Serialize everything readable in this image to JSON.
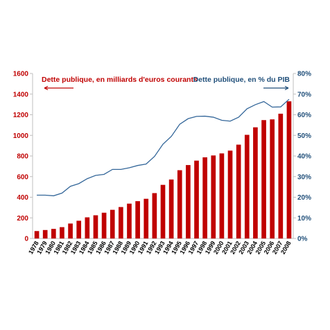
{
  "chart_data": {
    "type": "bar+line",
    "x": [
      "1978",
      "1979",
      "1980",
      "1981",
      "1982",
      "1983",
      "1984",
      "1985",
      "1986",
      "1987",
      "1988",
      "1989",
      "1990",
      "1991",
      "1992",
      "1993",
      "1994",
      "1995",
      "1996",
      "1997",
      "1998",
      "1999",
      "2000",
      "2001",
      "2002",
      "2003",
      "2004",
      "2005",
      "2006",
      "2007",
      "2008"
    ],
    "series": [
      {
        "name": "Dette publique, en milliards d'euros courants",
        "type": "bar",
        "axis": "left",
        "color": "#c00000",
        "values": [
          72,
          82,
          93,
          110,
          145,
          172,
          205,
          225,
          250,
          278,
          305,
          338,
          362,
          385,
          440,
          520,
          572,
          662,
          712,
          755,
          787,
          805,
          825,
          852,
          910,
          1005,
          1078,
          1148,
          1155,
          1210,
          1330
        ]
      },
      {
        "name": "Dette publique, en % du PIB",
        "type": "line",
        "axis": "right",
        "color": "#336699",
        "values": [
          21,
          21,
          20.7,
          22,
          25.3,
          26.6,
          29,
          30.6,
          31.1,
          33.5,
          33.5,
          34.3,
          35.4,
          36.1,
          39.8,
          45.7,
          49.5,
          55.4,
          58.1,
          59.2,
          59.3,
          58.8,
          57.3,
          56.9,
          58.8,
          62.9,
          64.9,
          66.4,
          63.7,
          63.8,
          67.5
        ]
      }
    ],
    "left_axis": {
      "ylim": [
        0,
        1600
      ],
      "ticks": [
        "0",
        "200",
        "400",
        "600",
        "800",
        "1000",
        "1200",
        "1400",
        "1600"
      ]
    },
    "right_axis": {
      "ylim": [
        0,
        80
      ],
      "ticks": [
        "0%",
        "10%",
        "20%",
        "30%",
        "40%",
        "50%",
        "60%",
        "70%",
        "80%"
      ]
    },
    "legend": {
      "left_label": "Dette publique, en milliards d'euros courants",
      "right_label": "Dette publique, en % du PIB",
      "left_arrow": "←",
      "right_arrow": "→"
    },
    "grid": false
  }
}
